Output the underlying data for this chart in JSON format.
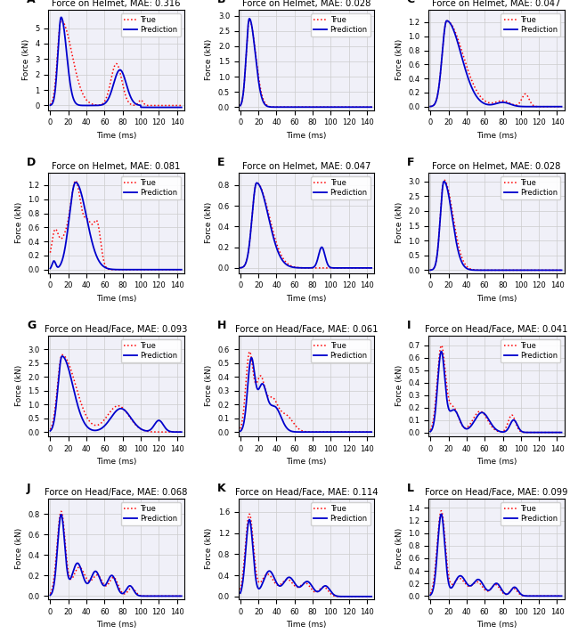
{
  "subplots": [
    {
      "label": "A",
      "title": "Force on Helmet, MAE: 0.316",
      "ylim": [
        -0.3,
        6.2
      ],
      "yticks": [
        0,
        1,
        2,
        3,
        4,
        5
      ]
    },
    {
      "label": "B",
      "title": "Force on Helmet, MAE: 0.028",
      "ylim": [
        -0.1,
        3.2
      ],
      "yticks": [
        0.0,
        0.5,
        1.0,
        1.5,
        2.0,
        2.5,
        3.0
      ]
    },
    {
      "label": "C",
      "title": "Force on Helmet, MAE: 0.047",
      "ylim": [
        -0.05,
        1.38
      ],
      "yticks": [
        0.0,
        0.2,
        0.4,
        0.6,
        0.8,
        1.0,
        1.2
      ]
    },
    {
      "label": "D",
      "title": "Force on Helmet, MAE: 0.081",
      "ylim": [
        -0.05,
        1.38
      ],
      "yticks": [
        0.0,
        0.2,
        0.4,
        0.6,
        0.8,
        1.0,
        1.2
      ]
    },
    {
      "label": "E",
      "title": "Force on Helmet, MAE: 0.047",
      "ylim": [
        -0.05,
        0.92
      ],
      "yticks": [
        0.0,
        0.2,
        0.4,
        0.6,
        0.8
      ]
    },
    {
      "label": "F",
      "title": "Force on Helmet, MAE: 0.028",
      "ylim": [
        -0.1,
        3.3
      ],
      "yticks": [
        0.0,
        0.5,
        1.0,
        1.5,
        2.0,
        2.5,
        3.0
      ]
    },
    {
      "label": "G",
      "title": "Force on Head/Face, MAE: 0.093",
      "ylim": [
        -0.15,
        3.5
      ],
      "yticks": [
        0.0,
        0.5,
        1.0,
        1.5,
        2.0,
        2.5,
        3.0
      ]
    },
    {
      "label": "H",
      "title": "Force on Head/Face, MAE: 0.061",
      "ylim": [
        -0.03,
        0.7
      ],
      "yticks": [
        0.0,
        0.1,
        0.2,
        0.3,
        0.4,
        0.5,
        0.6
      ]
    },
    {
      "label": "I",
      "title": "Force on Head/Face, MAE: 0.041",
      "ylim": [
        -0.03,
        0.78
      ],
      "yticks": [
        0.0,
        0.1,
        0.2,
        0.3,
        0.4,
        0.5,
        0.6,
        0.7
      ]
    },
    {
      "label": "J",
      "title": "Force on Head/Face, MAE: 0.068",
      "ylim": [
        -0.03,
        0.95
      ],
      "yticks": [
        0.0,
        0.2,
        0.4,
        0.6,
        0.8
      ]
    },
    {
      "label": "K",
      "title": "Force on Head/Face, MAE: 0.114",
      "ylim": [
        -0.05,
        1.85
      ],
      "yticks": [
        0.0,
        0.4,
        0.8,
        1.2,
        1.6
      ]
    },
    {
      "label": "L",
      "title": "Force on Head/Face, MAE: 0.099",
      "ylim": [
        -0.05,
        1.55
      ],
      "yticks": [
        0.0,
        0.2,
        0.4,
        0.6,
        0.8,
        1.0,
        1.2,
        1.4
      ]
    }
  ],
  "xlabel": "Time (ms)",
  "ylabel": "Force (kN)",
  "xticks": [
    0,
    20,
    40,
    60,
    80,
    100,
    120,
    140
  ],
  "xlim": [
    -2,
    148
  ],
  "true_color": "#ff0000",
  "pred_color": "#0000cc",
  "true_label": "True",
  "pred_label": "Prediction",
  "grid_color": "#cccccc",
  "bg_color": "#f0f0f8"
}
